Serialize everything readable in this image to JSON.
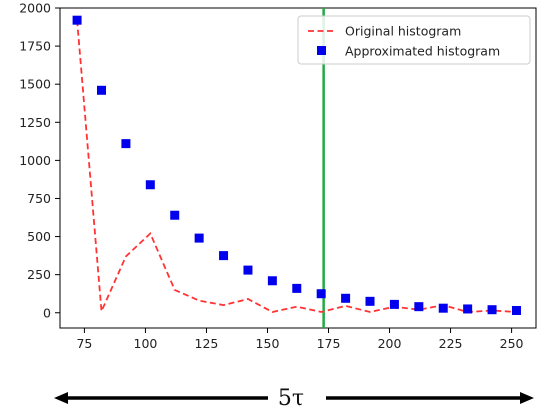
{
  "chart_data": {
    "type": "line",
    "title": "",
    "xlabel": "",
    "ylabel": "",
    "xlim": [
      65,
      260
    ],
    "ylim": [
      -100,
      2000
    ],
    "xticks": [
      75,
      100,
      125,
      150,
      175,
      200,
      225,
      250
    ],
    "yticks": [
      0,
      250,
      500,
      750,
      1000,
      1250,
      1500,
      1750,
      2000
    ],
    "x_tick_labels": [
      "75",
      "100",
      "125",
      "150",
      "175",
      "200",
      "225",
      "250"
    ],
    "y_tick_labels": [
      "0",
      "250",
      "500",
      "750",
      "1000",
      "1250",
      "1500",
      "1750",
      "2000"
    ],
    "grid": false,
    "legend_position": "top-right",
    "series": [
      {
        "name": "Original histogram",
        "style": "dashed-line",
        "color": "#ff3333",
        "x": [
          72,
          82,
          92,
          102,
          112,
          122,
          132,
          142,
          152,
          162,
          172,
          182,
          192,
          202,
          212,
          222,
          232,
          242,
          252
        ],
        "values": [
          1920,
          10,
          370,
          520,
          150,
          80,
          50,
          90,
          5,
          40,
          5,
          45,
          5,
          40,
          20,
          50,
          5,
          15,
          5
        ]
      },
      {
        "name": "Approximated histogram",
        "style": "square-markers",
        "color": "#0000ee",
        "x": [
          72,
          82,
          92,
          102,
          112,
          122,
          132,
          142,
          152,
          162,
          172,
          182,
          192,
          202,
          212,
          222,
          232,
          242,
          252
        ],
        "values": [
          1920,
          1460,
          1110,
          840,
          640,
          490,
          375,
          280,
          210,
          160,
          125,
          95,
          75,
          55,
          40,
          30,
          25,
          20,
          15
        ]
      }
    ],
    "vertical_line": {
      "x": 173,
      "color": "#22aa44"
    },
    "annotation": {
      "label": "5τ",
      "arrows": "both-directions"
    }
  }
}
